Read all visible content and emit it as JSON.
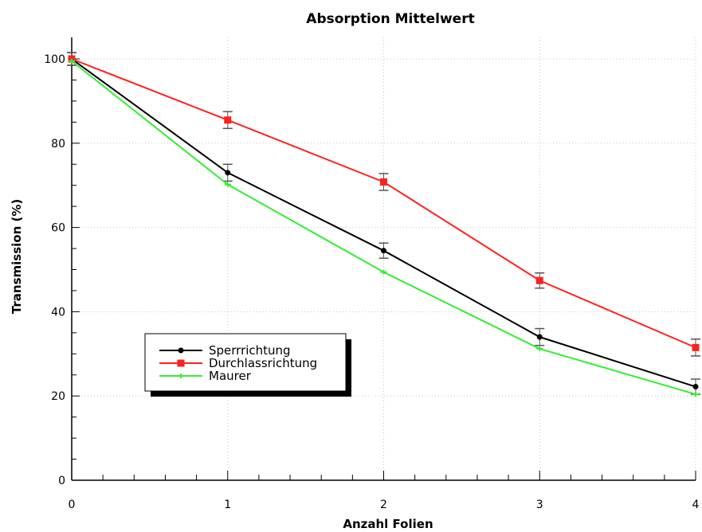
{
  "chart_data": {
    "type": "line",
    "title": "Absorption Mittelwert",
    "xlabel": "Anzahl Folien",
    "ylabel": "Transmission (%)",
    "x": [
      0,
      1,
      2,
      3,
      4
    ],
    "xlim": [
      0,
      4
    ],
    "ylim": [
      0,
      105
    ],
    "xticks": [
      0,
      1,
      2,
      3,
      4
    ],
    "yticks": [
      0,
      20,
      40,
      60,
      80,
      100
    ],
    "grid": true,
    "legend_position": "lower-left",
    "series": [
      {
        "name": "Sperrrichtung",
        "color": "#000000",
        "marker": "circle",
        "values": [
          100,
          73,
          54.5,
          34,
          22.2
        ],
        "errors": [
          1.5,
          2,
          1.8,
          2,
          1.8
        ]
      },
      {
        "name": "Durchlassrichtung",
        "color": "#ff2020",
        "marker": "square",
        "values": [
          100,
          85.5,
          70.8,
          47.4,
          31.5
        ],
        "errors": [
          1.5,
          2,
          2,
          1.8,
          2
        ]
      },
      {
        "name": "Maurer",
        "color": "#33ee33",
        "marker": "star",
        "values": [
          99.5,
          70.2,
          49.4,
          31.2,
          20.4
        ],
        "errors": [
          0,
          0,
          0,
          0,
          0
        ]
      }
    ]
  }
}
